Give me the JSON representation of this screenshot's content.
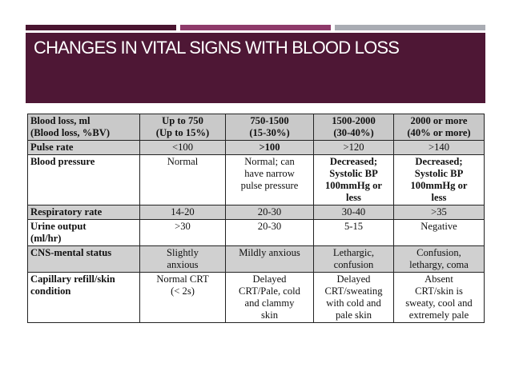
{
  "title": "CHANGES IN VITAL SIGNS WITH BLOOD LOSS",
  "table": {
    "headers": [
      [
        "Blood loss, ml",
        "(Blood loss, %BV)"
      ],
      [
        "Up to 750",
        "(Up to 15%)"
      ],
      [
        "750-1500",
        "(15-30%)"
      ],
      [
        "1500-2000",
        "(30-40%)"
      ],
      [
        "2000 or more",
        "(40% or more)"
      ]
    ],
    "rows": [
      {
        "label": [
          "Pulse rate"
        ],
        "cells": [
          [
            "<100"
          ],
          [
            ">100"
          ],
          [
            ">120"
          ],
          [
            ">140"
          ]
        ]
      },
      {
        "label": [
          "Blood pressure"
        ],
        "cells": [
          [
            "Normal"
          ],
          [
            "Normal; can",
            "have narrow",
            "pulse pressure"
          ],
          [
            "Decreased;",
            "Systolic BP",
            "100mmHg or",
            "less"
          ],
          [
            "Decreased;",
            "Systolic BP",
            "100mmHg or",
            "less"
          ]
        ]
      },
      {
        "label": [
          "Respiratory rate"
        ],
        "cells": [
          [
            "14-20"
          ],
          [
            "20-30"
          ],
          [
            "30-40"
          ],
          [
            ">35"
          ]
        ]
      },
      {
        "label": [
          "Urine output",
          "(ml/hr)"
        ],
        "cells": [
          [
            ">30"
          ],
          [
            "20-30"
          ],
          [
            "5-15"
          ],
          [
            "Negative"
          ]
        ]
      },
      {
        "label": [
          "CNS-mental status"
        ],
        "cells": [
          [
            "Slightly",
            "anxious"
          ],
          [
            "Mildly anxious"
          ],
          [
            "Lethargic,",
            "confusion"
          ],
          [
            "Confusion,",
            "lethargy, coma"
          ]
        ]
      },
      {
        "label": [
          "Capillary refill/skin",
          "condition"
        ],
        "cells": [
          [
            "Normal CRT",
            "(< 2s)"
          ],
          [
            "Delayed",
            "CRT/Pale, cold",
            "and clammy",
            "skin"
          ],
          [
            "Delayed",
            "CRT/sweating",
            "with cold and",
            "pale skin"
          ],
          [
            "Absent",
            "CRT/skin is",
            "sweaty, cool and",
            "extremely pale"
          ]
        ]
      }
    ]
  },
  "colors": {
    "title_band": "#4e1735",
    "stripe_1": "#4a1530",
    "stripe_2": "#8e3a6a",
    "stripe_3": "#a9acb3",
    "table_shade": "#d0d0d0"
  }
}
